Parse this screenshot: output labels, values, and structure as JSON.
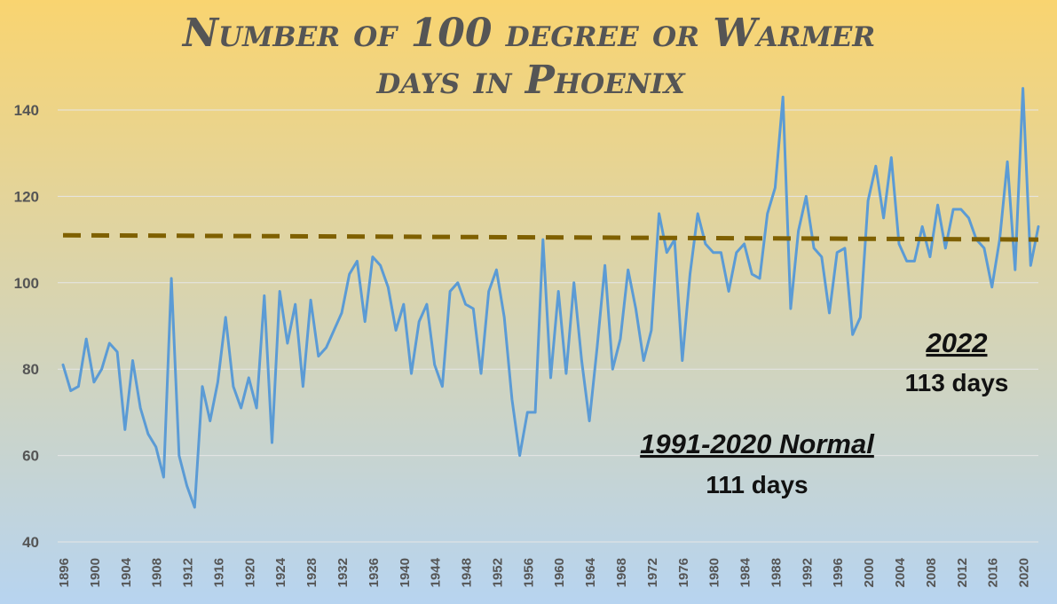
{
  "chart_data": {
    "type": "line",
    "title_line1": "Number of 100 degree or Warmer",
    "title_line2": "days in Phoenix",
    "xlabel": "",
    "ylabel": "",
    "ylim": [
      40,
      150
    ],
    "yticks": [
      40,
      60,
      80,
      100,
      120,
      140
    ],
    "xlim": [
      1896,
      2022
    ],
    "xticks": [
      1896,
      1900,
      1904,
      1908,
      1912,
      1916,
      1920,
      1924,
      1928,
      1932,
      1936,
      1940,
      1944,
      1948,
      1952,
      1956,
      1960,
      1964,
      1968,
      1972,
      1976,
      1980,
      1984,
      1988,
      1992,
      1996,
      2000,
      2004,
      2008,
      2012,
      2016,
      2020
    ],
    "grid": true,
    "series": [
      {
        "x": [
          1896,
          1897,
          1898,
          1899,
          1900,
          1901,
          1902,
          1903,
          1904,
          1905,
          1906,
          1907,
          1908,
          1909,
          1910,
          1911,
          1912,
          1913,
          1914,
          1915,
          1916,
          1917,
          1918,
          1919,
          1920,
          1921,
          1922,
          1923,
          1924,
          1925,
          1926,
          1927,
          1928,
          1929,
          1930,
          1931,
          1932,
          1933,
          1934,
          1935,
          1936,
          1937,
          1938,
          1939,
          1940,
          1941,
          1942,
          1943,
          1944,
          1945,
          1946,
          1947,
          1948,
          1949,
          1950,
          1951,
          1952,
          1953,
          1954,
          1955,
          1956,
          1957,
          1958,
          1959,
          1960,
          1961,
          1962,
          1963,
          1964,
          1965,
          1966,
          1967,
          1968,
          1969,
          1970,
          1971,
          1972,
          1973,
          1974,
          1975,
          1976,
          1977,
          1978,
          1979,
          1980,
          1981,
          1982,
          1983,
          1984,
          1985,
          1986,
          1987,
          1988,
          1989,
          1990,
          1991,
          1992,
          1993,
          1994,
          1995,
          1996,
          1997,
          1998,
          1999,
          2000,
          2001,
          2002,
          2003,
          2004,
          2005,
          2006,
          2007,
          2008,
          2009,
          2010,
          2011,
          2012,
          2013,
          2014,
          2015,
          2016,
          2017,
          2018,
          2019,
          2020,
          2021,
          2022
        ],
        "values": [
          81,
          75,
          76,
          87,
          77,
          80,
          86,
          84,
          66,
          82,
          71,
          65,
          62,
          55,
          101,
          60,
          53,
          48,
          76,
          68,
          77,
          92,
          76,
          71,
          78,
          71,
          97,
          63,
          98,
          86,
          95,
          76,
          96,
          83,
          85,
          89,
          93,
          102,
          105,
          91,
          106,
          104,
          99,
          89,
          95,
          79,
          91,
          95,
          81,
          76,
          98,
          100,
          95,
          94,
          79,
          98,
          103,
          92,
          73,
          60,
          70,
          70,
          110,
          78,
          98,
          79,
          100,
          82,
          68,
          85,
          104,
          80,
          87,
          103,
          94,
          82,
          89,
          116,
          107,
          110,
          82,
          102,
          116,
          109,
          107,
          107,
          98,
          107,
          109,
          102,
          101,
          116,
          122,
          143,
          94,
          112,
          120,
          108,
          106,
          93,
          107,
          108,
          88,
          92,
          119,
          127,
          115,
          129,
          109,
          105,
          105,
          113,
          106,
          118,
          108,
          117,
          117,
          115,
          110,
          108,
          99,
          110,
          128,
          103,
          145,
          104,
          113
        ],
        "color": "#5b9bd5"
      },
      {
        "x": [
          1896,
          2022
        ],
        "values": [
          111,
          110
        ],
        "color": "#7f6000",
        "style": "dashed"
      }
    ],
    "annotations": [
      {
        "title": "1991-2020 Normal",
        "value": "111 days"
      },
      {
        "title": "2022",
        "value": "113 days"
      }
    ],
    "background": {
      "top": "#f9d470",
      "bottom": "#b7d4f0"
    },
    "grid_color": "#e6e6e6"
  }
}
